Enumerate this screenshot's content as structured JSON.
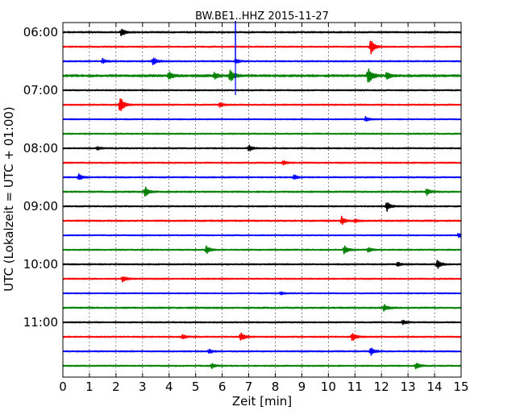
{
  "chart_data": {
    "type": "line",
    "title": "BW.BE1..HHZ 2015-11-27",
    "xlabel": "Zeit  [min]",
    "ylabel": "UTC (Lokalzeit = UTC + 01:00)",
    "xlim": [
      0,
      15
    ],
    "x_ticks": [
      "0",
      "1",
      "2",
      "3",
      "4",
      "5",
      "6",
      "7",
      "8",
      "9",
      "10",
      "11",
      "12",
      "13",
      "14",
      "15"
    ],
    "start_time": "06:00",
    "minutes_per_line": 15,
    "y_tick_labels": [
      "06:00",
      "07:00",
      "08:00",
      "09:00",
      "10:00",
      "11:00"
    ],
    "grid": "vertical dotted",
    "colors": [
      "#000000",
      "#ff0000",
      "#0000ff",
      "#008000"
    ],
    "series": [
      {
        "line": "06:00",
        "color": "#000000",
        "noise": 0.6,
        "events": [
          {
            "x": 2.2,
            "amp": 5
          }
        ]
      },
      {
        "line": "06:15",
        "color": "#ff0000",
        "noise": 0.5,
        "events": [
          {
            "x": 11.6,
            "amp": 10
          }
        ]
      },
      {
        "line": "06:30",
        "color": "#0000ff",
        "noise": 0.5,
        "events": [
          {
            "x": 3.4,
            "amp": 5
          },
          {
            "x": 6.5,
            "amp": 3
          },
          {
            "x": 1.5,
            "amp": 3
          }
        ]
      },
      {
        "line": "06:45",
        "color": "#008000",
        "noise": 0.9,
        "events": [
          {
            "x": 4.0,
            "amp": 5
          },
          {
            "x": 5.7,
            "amp": 4
          },
          {
            "x": 6.3,
            "amp": 9
          },
          {
            "x": 11.5,
            "amp": 12
          },
          {
            "x": 12.2,
            "amp": 5
          }
        ]
      },
      {
        "line": "07:00",
        "color": "#000000",
        "noise": 0.5,
        "events": []
      },
      {
        "line": "07:15",
        "color": "#ff0000",
        "noise": 0.5,
        "events": [
          {
            "x": 2.15,
            "amp": 11
          },
          {
            "x": 5.9,
            "amp": 3
          }
        ]
      },
      {
        "line": "07:30",
        "color": "#0000ff",
        "noise": 0.4,
        "events": [
          {
            "x": 11.4,
            "amp": 3
          }
        ]
      },
      {
        "line": "07:45",
        "color": "#008000",
        "noise": 0.5,
        "events": []
      },
      {
        "line": "08:00",
        "color": "#000000",
        "noise": 0.5,
        "events": [
          {
            "x": 7.0,
            "amp": 4
          },
          {
            "x": 1.3,
            "amp": 2
          }
        ]
      },
      {
        "line": "08:15",
        "color": "#ff0000",
        "noise": 0.5,
        "events": [
          {
            "x": 8.3,
            "amp": 3
          }
        ]
      },
      {
        "line": "08:30",
        "color": "#0000ff",
        "noise": 0.5,
        "events": [
          {
            "x": 0.6,
            "amp": 4
          },
          {
            "x": 8.7,
            "amp": 3
          }
        ]
      },
      {
        "line": "08:45",
        "color": "#008000",
        "noise": 0.6,
        "events": [
          {
            "x": 3.1,
            "amp": 6
          },
          {
            "x": 13.7,
            "amp": 4
          }
        ]
      },
      {
        "line": "09:00",
        "color": "#000000",
        "noise": 0.5,
        "events": [
          {
            "x": 12.2,
            "amp": 6
          }
        ]
      },
      {
        "line": "09:15",
        "color": "#ff0000",
        "noise": 0.6,
        "events": [
          {
            "x": 10.5,
            "amp": 5
          },
          {
            "x": 11.0,
            "amp": 2
          }
        ]
      },
      {
        "line": "09:30",
        "color": "#0000ff",
        "noise": 0.4,
        "events": [
          {
            "x": 14.9,
            "amp": 3
          }
        ]
      },
      {
        "line": "09:45",
        "color": "#008000",
        "noise": 0.5,
        "events": [
          {
            "x": 5.4,
            "amp": 5
          },
          {
            "x": 10.6,
            "amp": 6
          },
          {
            "x": 11.5,
            "amp": 3
          }
        ]
      },
      {
        "line": "10:00",
        "color": "#000000",
        "noise": 0.5,
        "events": [
          {
            "x": 14.1,
            "amp": 6
          },
          {
            "x": 12.6,
            "amp": 3
          }
        ]
      },
      {
        "line": "10:15",
        "color": "#ff0000",
        "noise": 0.5,
        "events": [
          {
            "x": 2.25,
            "amp": 4
          }
        ]
      },
      {
        "line": "10:30",
        "color": "#0000ff",
        "noise": 0.4,
        "events": [
          {
            "x": 8.2,
            "amp": 2
          }
        ]
      },
      {
        "line": "10:45",
        "color": "#008000",
        "noise": 0.6,
        "events": [
          {
            "x": 12.1,
            "amp": 4
          }
        ]
      },
      {
        "line": "11:00",
        "color": "#000000",
        "noise": 0.5,
        "events": [
          {
            "x": 12.8,
            "amp": 3
          }
        ]
      },
      {
        "line": "11:15",
        "color": "#ff0000",
        "noise": 0.5,
        "events": [
          {
            "x": 6.7,
            "amp": 6
          },
          {
            "x": 10.9,
            "amp": 6
          },
          {
            "x": 4.5,
            "amp": 3
          }
        ]
      },
      {
        "line": "11:30",
        "color": "#0000ff",
        "noise": 0.5,
        "events": [
          {
            "x": 11.6,
            "amp": 5
          },
          {
            "x": 5.5,
            "amp": 3
          }
        ]
      },
      {
        "line": "11:45",
        "color": "#008000",
        "noise": 0.5,
        "events": [
          {
            "x": 13.3,
            "amp": 4
          },
          {
            "x": 5.6,
            "amp": 3
          }
        ]
      }
    ]
  }
}
